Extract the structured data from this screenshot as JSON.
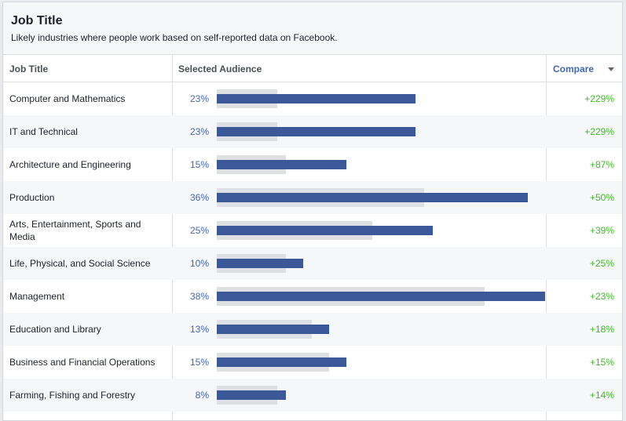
{
  "header": {
    "title": "Job Title",
    "subtitle": "Likely industries where people work based on self-reported data on Facebook."
  },
  "table": {
    "col_job": "Job Title",
    "col_audience": "Selected Audience",
    "col_compare": "Compare"
  },
  "colors": {
    "selected_bar": "#3b5998",
    "compare_bar": "#dddfe2",
    "positive_delta": "#42b72a",
    "link": "#4267b2"
  },
  "rows": [
    {
      "label": "Computer and Mathematics",
      "pct": "23%",
      "selected": 23,
      "compare": 7,
      "delta": "+229%"
    },
    {
      "label": "IT and Technical",
      "pct": "23%",
      "selected": 23,
      "compare": 7,
      "delta": "+229%"
    },
    {
      "label": "Architecture and Engineering",
      "pct": "15%",
      "selected": 15,
      "compare": 8,
      "delta": "+87%"
    },
    {
      "label": "Production",
      "pct": "36%",
      "selected": 36,
      "compare": 24,
      "delta": "+50%"
    },
    {
      "label": "Arts, Entertainment, Sports and Media",
      "pct": "25%",
      "selected": 25,
      "compare": 18,
      "delta": "+39%"
    },
    {
      "label": "Life, Physical, and Social Science",
      "pct": "10%",
      "selected": 10,
      "compare": 8,
      "delta": "+25%"
    },
    {
      "label": "Management",
      "pct": "38%",
      "selected": 38,
      "compare": 31,
      "delta": "+23%"
    },
    {
      "label": "Education and Library",
      "pct": "13%",
      "selected": 13,
      "compare": 11,
      "delta": "+18%"
    },
    {
      "label": "Business and Financial Operations",
      "pct": "15%",
      "selected": 15,
      "compare": 13,
      "delta": "+15%"
    },
    {
      "label": "Farming, Fishing and Forestry",
      "pct": "8%",
      "selected": 8,
      "compare": 7,
      "delta": "+14%"
    }
  ]
}
